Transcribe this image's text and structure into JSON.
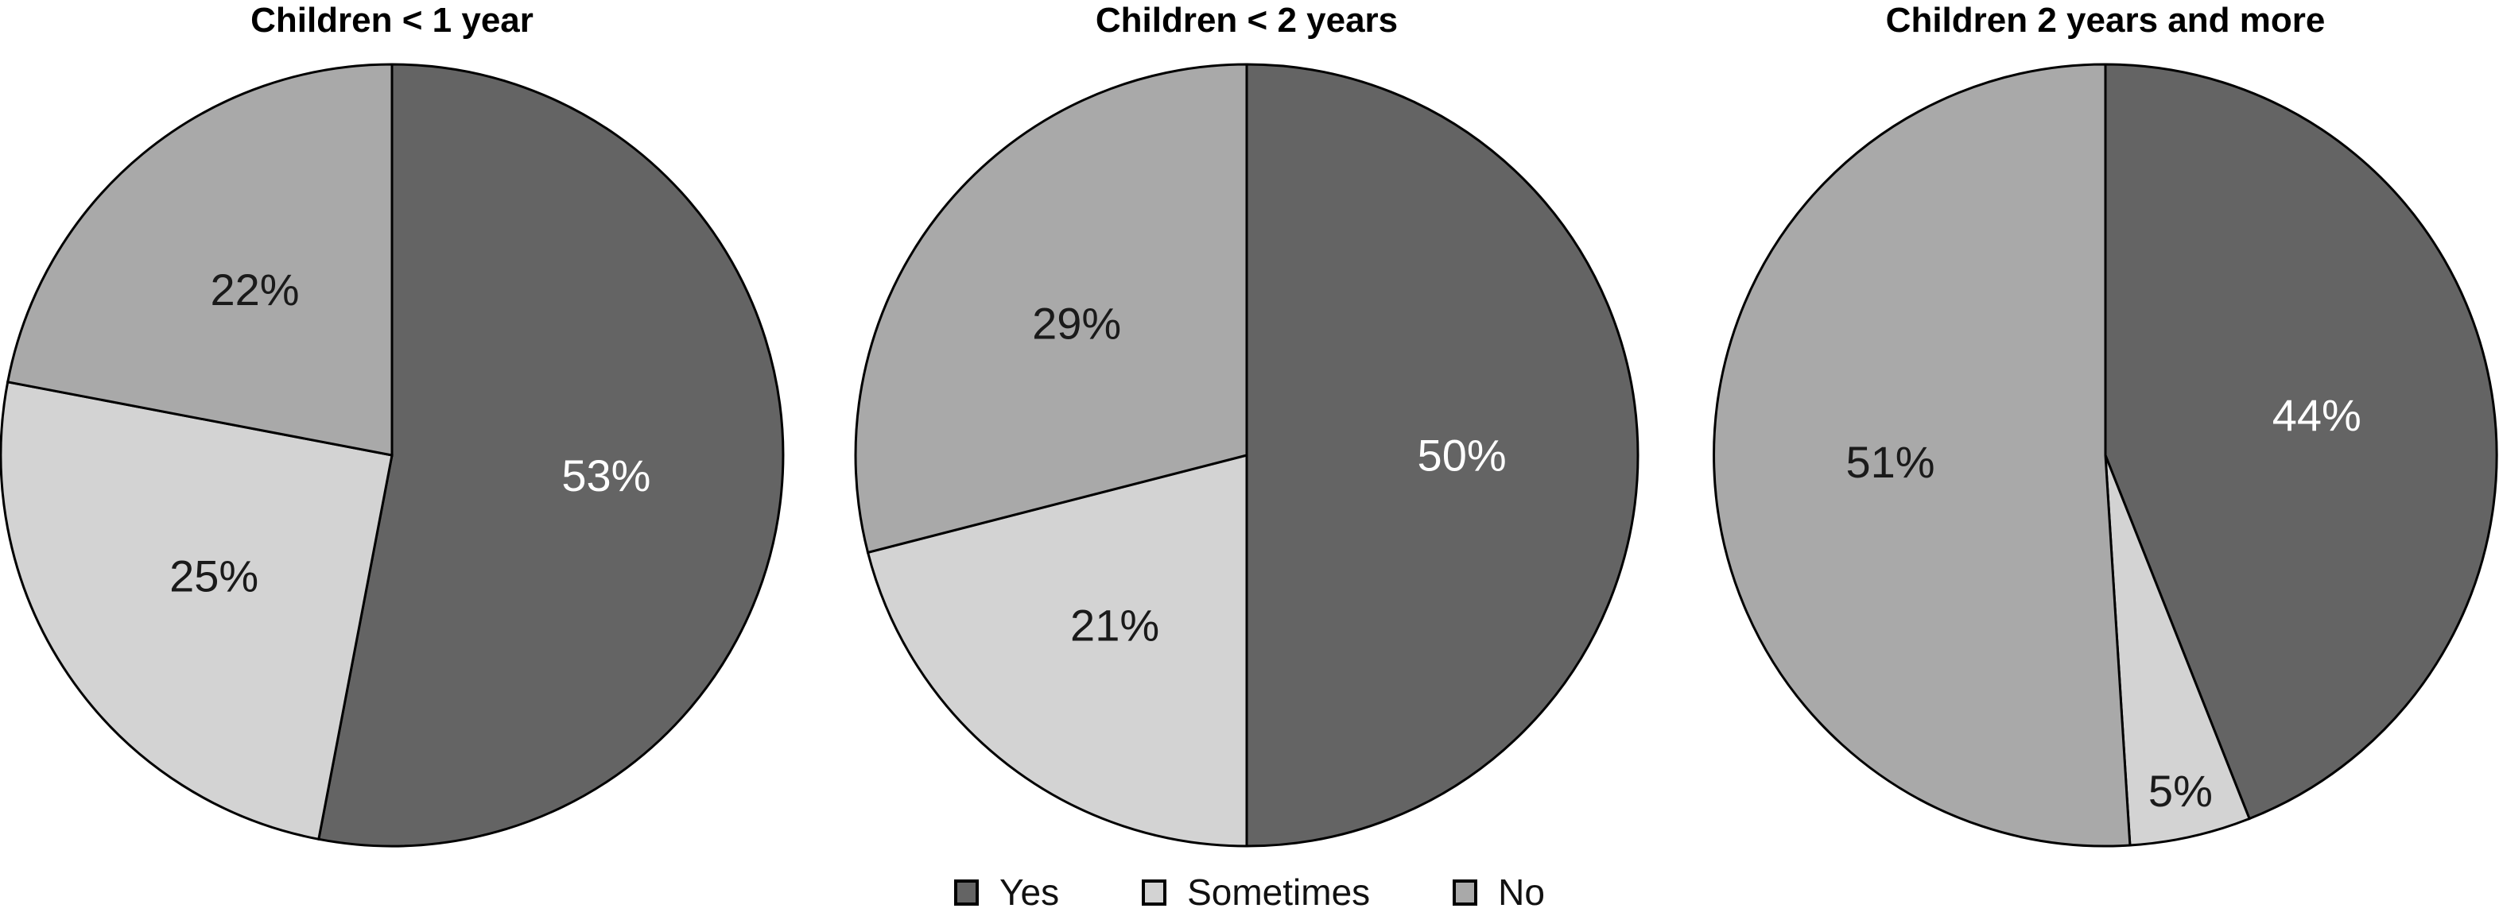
{
  "chart_data": {
    "type": "pie",
    "layout": "three pie charts side by side, shared legend at bottom center",
    "legend_position": "bottom",
    "start_angle_deg_from_top": 0,
    "direction": "clockwise",
    "label_format": "{value}%",
    "charts": [
      {
        "title": "Children < 1 year",
        "slices": [
          {
            "label": "Yes",
            "value": 53,
            "display": "53%"
          },
          {
            "label": "Sometimes",
            "value": 25,
            "display": "25%"
          },
          {
            "label": "No",
            "value": 22,
            "display": "22%"
          }
        ]
      },
      {
        "title": "Children < 2 years",
        "slices": [
          {
            "label": "Yes",
            "value": 50,
            "display": "50%"
          },
          {
            "label": "Sometimes",
            "value": 21,
            "display": "21%"
          },
          {
            "label": "No",
            "value": 29,
            "display": "29%"
          }
        ]
      },
      {
        "title": "Children 2 years and more",
        "slices": [
          {
            "label": "Yes",
            "value": 44,
            "display": "44%"
          },
          {
            "label": "Sometimes",
            "value": 5,
            "display": "5%"
          },
          {
            "label": "No",
            "value": 51,
            "display": "51%"
          }
        ]
      }
    ],
    "legend_items": [
      {
        "label": "Yes",
        "color": "#646464"
      },
      {
        "label": "Sometimes",
        "color": "#d3d3d3"
      },
      {
        "label": "No",
        "color": "#a9a9a9"
      }
    ]
  },
  "colors": {
    "yes_slice": "#646464",
    "sometimes_slice": "#d3d3d3",
    "no_slice": "#a9a9a9",
    "slice_outline": "#000000",
    "label_on_dark": "#ffffff",
    "label_on_light": "#1a1a1a",
    "title_text": "#000000",
    "background": "#ffffff"
  }
}
